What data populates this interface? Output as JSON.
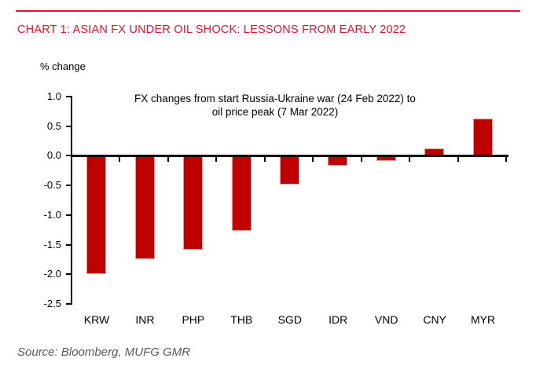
{
  "header": {
    "title": "CHART 1: ASIAN FX UNDER OIL SHOCK: LESSONS FROM EARLY 2022"
  },
  "chart_data": {
    "type": "bar",
    "title": "FX changes from start Russia-Ukraine war (24 Feb 2022) to oil price peak (7 Mar 2022)",
    "subtitle_lines": [
      "FX changes from start Russia-Ukraine war (24 Feb 2022) to",
      "oil price peak (7 Mar 2022)"
    ],
    "ylabel": "% change",
    "xlabel": "",
    "categories": [
      "KRW",
      "INR",
      "PHP",
      "THB",
      "SGD",
      "IDR",
      "VND",
      "CNY",
      "MYR"
    ],
    "values": [
      -2.0,
      -1.74,
      -1.58,
      -1.27,
      -0.48,
      -0.17,
      -0.09,
      0.13,
      0.63
    ],
    "ylim": [
      -2.5,
      1.0
    ],
    "yticks": [
      1.0,
      0.5,
      0.0,
      -0.5,
      -1.0,
      -1.5,
      -2.0,
      -2.5
    ],
    "grid": false,
    "legend_position": "none",
    "bar_color": "#c00000",
    "bar_border_color": "#dfa3a0"
  },
  "footer": {
    "source": "Source: Bloomberg, MUFG GMR"
  },
  "colors": {
    "accent_red": "#e8112d",
    "bar": "#c00000",
    "axis": "#000000",
    "source_text": "#595959"
  }
}
